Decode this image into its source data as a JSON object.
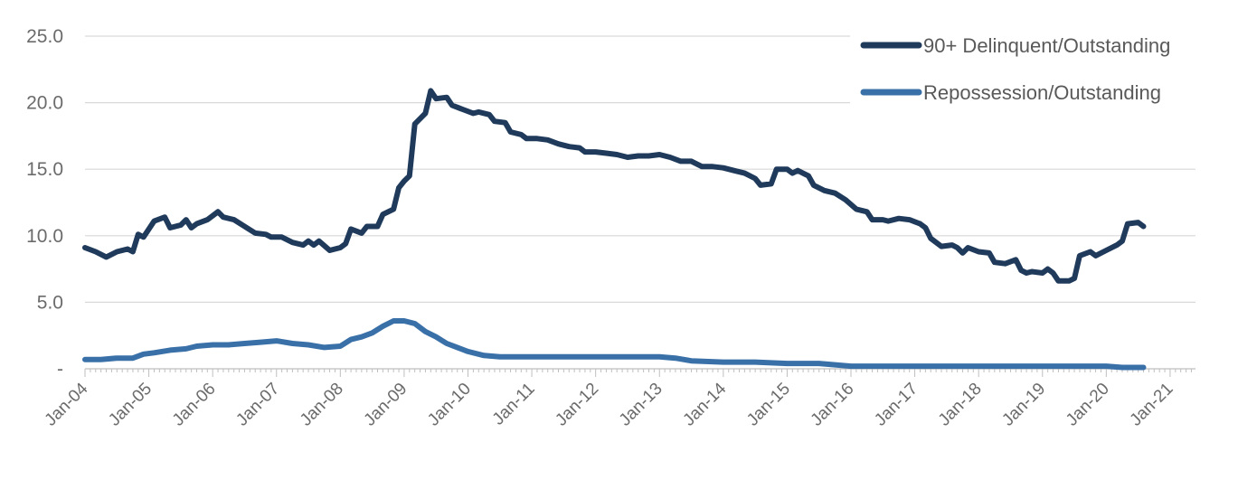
{
  "chart_data": {
    "type": "line",
    "title": "",
    "xlabel": "",
    "ylabel": "",
    "ylim": [
      0,
      25
    ],
    "yticks": [
      0,
      5,
      10,
      15,
      20,
      25
    ],
    "ytick_labels": [
      "-",
      "5.0",
      "10.0",
      "15.0",
      "20.0",
      "25.0"
    ],
    "xlim": [
      "Jan-04",
      "May-21"
    ],
    "xtick_labels": [
      "Jan-04",
      "Jan-05",
      "Jan-06",
      "Jan-07",
      "Jan-08",
      "Jan-09",
      "Jan-10",
      "Jan-11",
      "Jan-12",
      "Jan-13",
      "Jan-14",
      "Jan-15",
      "Jan-16",
      "Jan-17",
      "Jan-18",
      "Jan-19",
      "Jan-20",
      "Jan-21"
    ],
    "grid": true,
    "legend_position": "top-right",
    "colors": {
      "delinquent": "#1f3a5a",
      "repossession": "#3a70a8",
      "grid": "#d9d9d9",
      "axis": "#bfbfbf"
    },
    "series": [
      {
        "name": "90+ Delinquent/Outstanding",
        "color": "#1f3a5a",
        "points": [
          [
            "Jan-04",
            9.1
          ],
          [
            "Mar-04",
            8.8
          ],
          [
            "May-04",
            8.4
          ],
          [
            "Jul-04",
            8.8
          ],
          [
            "Sep-04",
            9.0
          ],
          [
            "Oct-04",
            8.8
          ],
          [
            "Nov-04",
            10.1
          ],
          [
            "Dec-04",
            9.9
          ],
          [
            "Feb-05",
            11.1
          ],
          [
            "Apr-05",
            11.4
          ],
          [
            "May-05",
            10.6
          ],
          [
            "Jul-05",
            10.8
          ],
          [
            "Aug-05",
            11.2
          ],
          [
            "Sep-05",
            10.6
          ],
          [
            "Oct-05",
            10.9
          ],
          [
            "Dec-05",
            11.2
          ],
          [
            "Feb-06",
            11.8
          ],
          [
            "Mar-06",
            11.4
          ],
          [
            "May-06",
            11.2
          ],
          [
            "Jul-06",
            10.7
          ],
          [
            "Sep-06",
            10.2
          ],
          [
            "Nov-06",
            10.1
          ],
          [
            "Dec-06",
            9.9
          ],
          [
            "Feb-07",
            9.9
          ],
          [
            "Apr-07",
            9.5
          ],
          [
            "Jun-07",
            9.3
          ],
          [
            "Jul-07",
            9.6
          ],
          [
            "Aug-07",
            9.3
          ],
          [
            "Sep-07",
            9.6
          ],
          [
            "Nov-07",
            8.9
          ],
          [
            "Jan-08",
            9.1
          ],
          [
            "Feb-08",
            9.4
          ],
          [
            "Mar-08",
            10.5
          ],
          [
            "May-08",
            10.2
          ],
          [
            "Jun-08",
            10.7
          ],
          [
            "Aug-08",
            10.7
          ],
          [
            "Sep-08",
            11.6
          ],
          [
            "Nov-08",
            12.0
          ],
          [
            "Dec-08",
            13.6
          ],
          [
            "Jan-09",
            14.1
          ],
          [
            "Feb-09",
            14.5
          ],
          [
            "Mar-09",
            18.4
          ],
          [
            "May-09",
            19.2
          ],
          [
            "Jun-09",
            20.9
          ],
          [
            "Jul-09",
            20.3
          ],
          [
            "Sep-09",
            20.4
          ],
          [
            "Oct-09",
            19.8
          ],
          [
            "Dec-09",
            19.5
          ],
          [
            "Feb-10",
            19.2
          ],
          [
            "Mar-10",
            19.3
          ],
          [
            "May-10",
            19.1
          ],
          [
            "Jun-10",
            18.6
          ],
          [
            "Aug-10",
            18.5
          ],
          [
            "Sep-10",
            17.8
          ],
          [
            "Nov-10",
            17.6
          ],
          [
            "Dec-10",
            17.3
          ],
          [
            "Feb-11",
            17.3
          ],
          [
            "Apr-11",
            17.2
          ],
          [
            "Jun-11",
            16.9
          ],
          [
            "Aug-11",
            16.7
          ],
          [
            "Oct-11",
            16.6
          ],
          [
            "Nov-11",
            16.3
          ],
          [
            "Jan-12",
            16.3
          ],
          [
            "Mar-12",
            16.2
          ],
          [
            "May-12",
            16.1
          ],
          [
            "Jul-12",
            15.9
          ],
          [
            "Sep-12",
            16.0
          ],
          [
            "Nov-12",
            16.0
          ],
          [
            "Jan-13",
            16.1
          ],
          [
            "Mar-13",
            15.9
          ],
          [
            "May-13",
            15.6
          ],
          [
            "Jul-13",
            15.6
          ],
          [
            "Sep-13",
            15.2
          ],
          [
            "Nov-13",
            15.2
          ],
          [
            "Jan-14",
            15.1
          ],
          [
            "Mar-14",
            14.9
          ],
          [
            "May-14",
            14.7
          ],
          [
            "Jul-14",
            14.3
          ],
          [
            "Aug-14",
            13.8
          ],
          [
            "Oct-14",
            13.9
          ],
          [
            "Nov-14",
            15.0
          ],
          [
            "Jan-15",
            15.0
          ],
          [
            "Feb-15",
            14.7
          ],
          [
            "Mar-15",
            14.9
          ],
          [
            "May-15",
            14.5
          ],
          [
            "Jun-15",
            13.8
          ],
          [
            "Aug-15",
            13.4
          ],
          [
            "Oct-15",
            13.2
          ],
          [
            "Dec-15",
            12.7
          ],
          [
            "Feb-16",
            12.0
          ],
          [
            "Apr-16",
            11.8
          ],
          [
            "May-16",
            11.2
          ],
          [
            "Jul-16",
            11.2
          ],
          [
            "Aug-16",
            11.1
          ],
          [
            "Oct-16",
            11.3
          ],
          [
            "Dec-16",
            11.2
          ],
          [
            "Feb-17",
            10.9
          ],
          [
            "Mar-17",
            10.6
          ],
          [
            "Apr-17",
            9.8
          ],
          [
            "Jun-17",
            9.2
          ],
          [
            "Aug-17",
            9.3
          ],
          [
            "Sep-17",
            9.1
          ],
          [
            "Oct-17",
            8.7
          ],
          [
            "Nov-17",
            9.1
          ],
          [
            "Jan-18",
            8.8
          ],
          [
            "Mar-18",
            8.7
          ],
          [
            "Apr-18",
            8.0
          ],
          [
            "Jun-18",
            7.9
          ],
          [
            "Aug-18",
            8.2
          ],
          [
            "Sep-18",
            7.4
          ],
          [
            "Oct-18",
            7.2
          ],
          [
            "Nov-18",
            7.3
          ],
          [
            "Jan-19",
            7.2
          ],
          [
            "Feb-19",
            7.5
          ],
          [
            "Mar-19",
            7.2
          ],
          [
            "Apr-19",
            6.6
          ],
          [
            "Jun-19",
            6.6
          ],
          [
            "Jul-19",
            6.8
          ],
          [
            "Aug-19",
            8.5
          ],
          [
            "Oct-19",
            8.8
          ],
          [
            "Nov-19",
            8.5
          ],
          [
            "Jan-20",
            8.9
          ],
          [
            "Mar-20",
            9.3
          ],
          [
            "Apr-20",
            9.6
          ],
          [
            "May-20",
            10.9
          ],
          [
            "Jul-20",
            11.0
          ],
          [
            "Aug-20",
            10.7
          ]
        ]
      },
      {
        "name": "Repossession/Outstanding",
        "color": "#3a70a8",
        "points": [
          [
            "Jan-04",
            0.7
          ],
          [
            "Apr-04",
            0.7
          ],
          [
            "Jul-04",
            0.8
          ],
          [
            "Oct-04",
            0.8
          ],
          [
            "Dec-04",
            1.1
          ],
          [
            "Feb-05",
            1.2
          ],
          [
            "May-05",
            1.4
          ],
          [
            "Aug-05",
            1.5
          ],
          [
            "Oct-05",
            1.7
          ],
          [
            "Jan-06",
            1.8
          ],
          [
            "Apr-06",
            1.8
          ],
          [
            "Jul-06",
            1.9
          ],
          [
            "Oct-06",
            2.0
          ],
          [
            "Jan-07",
            2.1
          ],
          [
            "Apr-07",
            1.9
          ],
          [
            "Jul-07",
            1.8
          ],
          [
            "Oct-07",
            1.6
          ],
          [
            "Jan-08",
            1.7
          ],
          [
            "Mar-08",
            2.2
          ],
          [
            "May-08",
            2.4
          ],
          [
            "Jul-08",
            2.7
          ],
          [
            "Sep-08",
            3.2
          ],
          [
            "Nov-08",
            3.6
          ],
          [
            "Jan-09",
            3.6
          ],
          [
            "Mar-09",
            3.4
          ],
          [
            "May-09",
            2.8
          ],
          [
            "Jul-09",
            2.4
          ],
          [
            "Sep-09",
            1.9
          ],
          [
            "Nov-09",
            1.6
          ],
          [
            "Jan-10",
            1.3
          ],
          [
            "Apr-10",
            1.0
          ],
          [
            "Jul-10",
            0.9
          ],
          [
            "Jan-11",
            0.9
          ],
          [
            "Jul-11",
            0.9
          ],
          [
            "Jan-12",
            0.9
          ],
          [
            "Jul-12",
            0.9
          ],
          [
            "Jan-13",
            0.9
          ],
          [
            "Apr-13",
            0.8
          ],
          [
            "Jul-13",
            0.6
          ],
          [
            "Jan-14",
            0.5
          ],
          [
            "Jul-14",
            0.5
          ],
          [
            "Jan-15",
            0.4
          ],
          [
            "Jul-15",
            0.4
          ],
          [
            "Jan-16",
            0.2
          ],
          [
            "Jul-16",
            0.2
          ],
          [
            "Jan-17",
            0.2
          ],
          [
            "Jul-17",
            0.2
          ],
          [
            "Jan-18",
            0.2
          ],
          [
            "Jul-18",
            0.2
          ],
          [
            "Jan-19",
            0.2
          ],
          [
            "Jul-19",
            0.2
          ],
          [
            "Jan-20",
            0.2
          ],
          [
            "Apr-20",
            0.1
          ],
          [
            "Aug-20",
            0.1
          ]
        ]
      }
    ]
  }
}
